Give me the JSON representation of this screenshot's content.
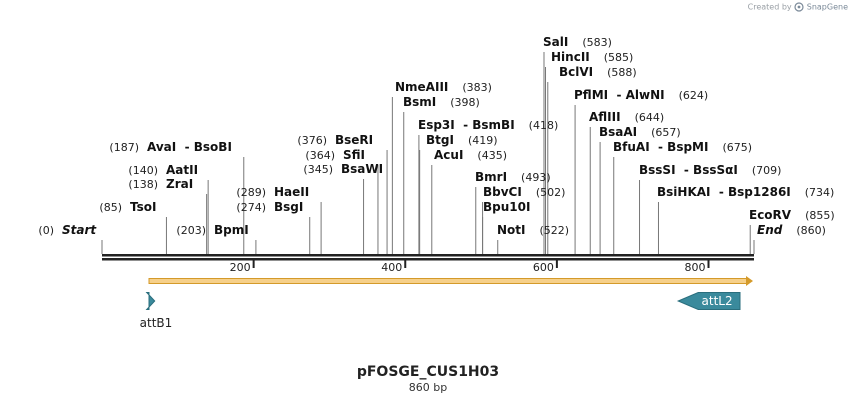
{
  "credit": {
    "prefix": "Created by",
    "brand": "SnapGene",
    "icon": "snapgene-logo-icon"
  },
  "map": {
    "name": "pFOSGE_CUS1H03",
    "length_label": "860 bp",
    "sequence_length": 860,
    "axis_ticks": [
      "200",
      "400",
      "600",
      "800"
    ],
    "colors": {
      "backbone": "#222222",
      "orf_fill": "#f6d08a",
      "orf_stroke": "#d49a2a",
      "feature": "#3a8a9c",
      "leader": "#777777",
      "label": "#111111",
      "position": "#222222"
    }
  },
  "chart_data": {
    "type": "restriction-map",
    "range": [
      0,
      860
    ],
    "axis_ticks": [
      200,
      400,
      600,
      800
    ],
    "sites": [
      {
        "name": "Start",
        "pos": 0,
        "position_label": "(0)",
        "italic": true
      },
      {
        "name": "TsoI",
        "pos": 85,
        "position_label": "(85)"
      },
      {
        "name": "ZraI",
        "pos": 138,
        "position_label": "(138)"
      },
      {
        "name": "AatII",
        "pos": 140,
        "position_label": "(140)"
      },
      {
        "name": "AvaI  - BsoBI",
        "pos": 187,
        "position_label": "(187)"
      },
      {
        "name": "BpmI",
        "pos": 203,
        "position_label": "(203)"
      },
      {
        "name": "BsgI",
        "pos": 274,
        "position_label": "(274)"
      },
      {
        "name": "HaeII",
        "pos": 289,
        "position_label": "(289)"
      },
      {
        "name": "BsaWI",
        "pos": 345,
        "position_label": "(345)"
      },
      {
        "name": "SfiI",
        "pos": 364,
        "position_label": "(364)"
      },
      {
        "name": "BseRI",
        "pos": 376,
        "position_label": "(376)"
      },
      {
        "name": "NmeAIII",
        "pos": 383,
        "position_label": "(383)"
      },
      {
        "name": "BsmI",
        "pos": 398,
        "position_label": "(398)"
      },
      {
        "name": "Esp3I  - BsmBI",
        "pos": 418,
        "position_label": "(418)"
      },
      {
        "name": "BtgI",
        "pos": 419,
        "position_label": "(419)"
      },
      {
        "name": "AcuI",
        "pos": 435,
        "position_label": "(435)"
      },
      {
        "name": "BmrI",
        "pos": 493,
        "position_label": "(493)"
      },
      {
        "name": "BbvCI",
        "pos": 502,
        "position_label": "(502)"
      },
      {
        "name": "Bpu10I",
        "pos": 502,
        "position_label": ""
      },
      {
        "name": "NotI",
        "pos": 522,
        "position_label": "(522)"
      },
      {
        "name": "SalI",
        "pos": 583,
        "position_label": "(583)"
      },
      {
        "name": "HincII",
        "pos": 585,
        "position_label": "(585)"
      },
      {
        "name": "BclVI",
        "pos": 588,
        "position_label": "(588)"
      },
      {
        "name": "PflMI  - AlwNI",
        "pos": 624,
        "position_label": "(624)"
      },
      {
        "name": "AflIII",
        "pos": 644,
        "position_label": "(644)"
      },
      {
        "name": "BsaAI",
        "pos": 657,
        "position_label": "(657)"
      },
      {
        "name": "BfuAI  - BspMI",
        "pos": 675,
        "position_label": "(675)"
      },
      {
        "name": "BssSI  - BssSαI",
        "pos": 709,
        "position_label": "(709)"
      },
      {
        "name": "BsiHKAI  - Bsp1286I",
        "pos": 734,
        "position_label": "(734)"
      },
      {
        "name": "EcoRV",
        "pos": 855,
        "position_label": "(855)"
      },
      {
        "name": "End",
        "pos": 860,
        "position_label": "(860)",
        "italic": true
      }
    ],
    "orf": {
      "start": 62,
      "end": 860,
      "direction": "forward"
    },
    "features": [
      {
        "name": "attB1",
        "start": 62,
        "end": 88,
        "direction": "forward"
      },
      {
        "name": "attL2",
        "start": 760,
        "end": 860,
        "direction": "reverse"
      }
    ]
  }
}
